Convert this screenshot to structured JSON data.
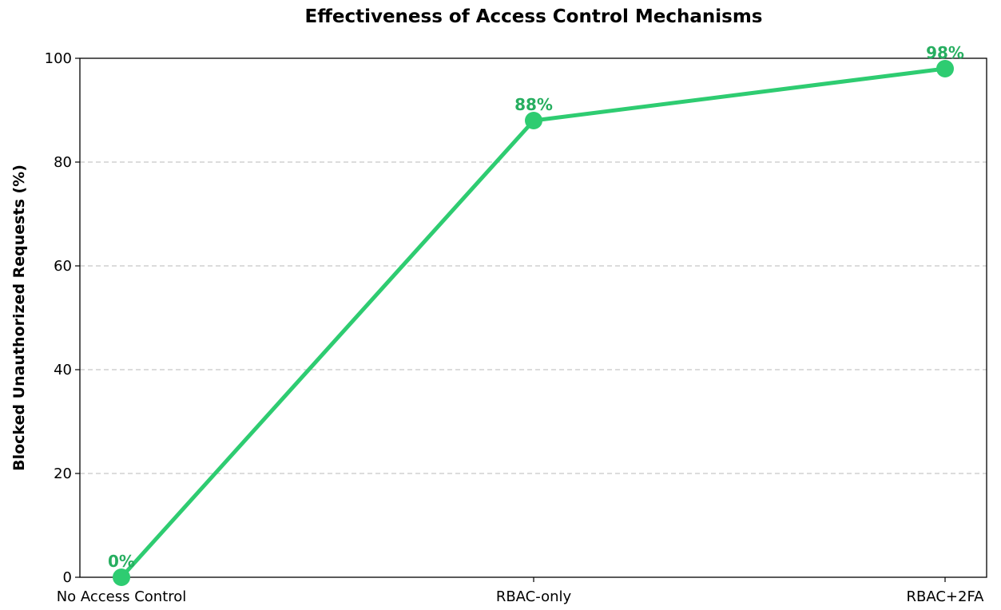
{
  "chart_data": {
    "type": "line",
    "title": "Effectiveness of Access Control Mechanisms",
    "xlabel": "",
    "ylabel": "Blocked Unauthorized Requests (%)",
    "categories": [
      "No Access Control",
      "RBAC-only",
      "RBAC+2FA"
    ],
    "values": [
      0,
      88,
      98
    ],
    "data_labels": [
      "0%",
      "88%",
      "98%"
    ],
    "ylim": [
      0,
      100
    ],
    "yticks": [
      0,
      20,
      40,
      60,
      80,
      100
    ],
    "grid": "y-dashed",
    "legend": "none",
    "color": "#2ecc71",
    "label_color": "#27ae60"
  }
}
